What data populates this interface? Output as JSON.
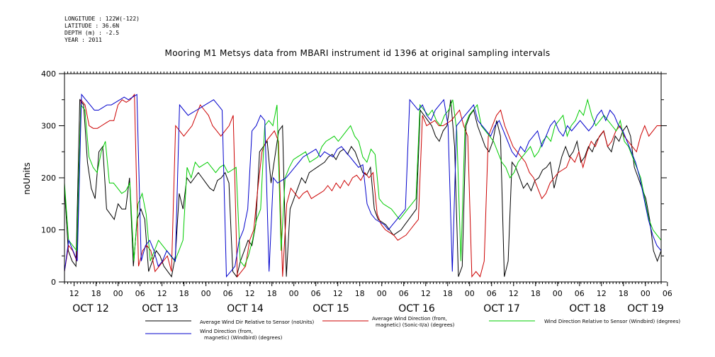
{
  "header": {
    "longitude": "LONGITUDE : 122W(-122)",
    "latitude": "LATITUDE : 36.6N",
    "depth": "DEPTH (m) : -2.5",
    "year": "YEAR : 2011"
  },
  "chart_data": {
    "type": "line",
    "title": "Mooring M1 Metsys data from MBARI instrument id 1396 at original sampling intervals",
    "ylabel": "noUnits",
    "xlabel": "",
    "ylim": [
      0,
      400
    ],
    "yticks": [
      0,
      100,
      200,
      300,
      400
    ],
    "xlim": [
      0,
      186
    ],
    "hour_ticks": [
      "12",
      "18",
      "00",
      "06",
      "12",
      "18",
      "00",
      "06",
      "12",
      "18",
      "00",
      "06",
      "12",
      "18",
      "00",
      "06",
      "12",
      "18",
      "00",
      "06",
      "12",
      "18",
      "00",
      "06",
      "12",
      "18",
      "00",
      "06"
    ],
    "day_labels": [
      "OCT 12",
      "OCT 13",
      "OCT 14",
      "OCT 15",
      "OCT 16",
      "OCT 17",
      "OCT 18",
      "OCT 19"
    ],
    "series": [
      {
        "name": "Average Wind Dir Relative to Sensor (noUnits)",
        "color": "#000000",
        "values": [
          180,
          60,
          40,
          30,
          350,
          340,
          230,
          180,
          160,
          250,
          260,
          140,
          130,
          120,
          150,
          140,
          140,
          200,
          30,
          120,
          140,
          120,
          20,
          40,
          60,
          50,
          30,
          20,
          10,
          50,
          170,
          140,
          200,
          190,
          200,
          210,
          200,
          190,
          180,
          175,
          195,
          200,
          210,
          190,
          20,
          10,
          40,
          60,
          80,
          70,
          110,
          250,
          260,
          270,
          190,
          240,
          290,
          300,
          10,
          140,
          160,
          180,
          200,
          190,
          210,
          215,
          220,
          225,
          230,
          240,
          245,
          235,
          250,
          255,
          245,
          260,
          250,
          230,
          210,
          205,
          220,
          140,
          120,
          115,
          110,
          100,
          90,
          95,
          100,
          110,
          120,
          130,
          140,
          330,
          320,
          310,
          300,
          280,
          270,
          290,
          300,
          350,
          260,
          10,
          30,
          300,
          320,
          330,
          300,
          280,
          260,
          250,
          270,
          310,
          280,
          10,
          40,
          230,
          220,
          200,
          180,
          190,
          175,
          195,
          200,
          215,
          220,
          230,
          180,
          210,
          240,
          260,
          240,
          250,
          270,
          230,
          240,
          260,
          250,
          270,
          280,
          290,
          260,
          250,
          280,
          270,
          290,
          300,
          280,
          220,
          200,
          180,
          160,
          120,
          60,
          40,
          60
        ]
      },
      {
        "name": "Average Wind Direction (from, magnetic) (Sonic-II/a) (degrees)",
        "color": "#cc0000",
        "values": [
          20,
          70,
          60,
          40,
          350,
          340,
          300,
          295,
          295,
          300,
          305,
          310,
          310,
          340,
          350,
          345,
          350,
          360,
          30,
          60,
          70,
          60,
          20,
          30,
          40,
          50,
          20,
          300,
          290,
          280,
          290,
          300,
          320,
          340,
          330,
          320,
          300,
          290,
          280,
          290,
          300,
          320,
          10,
          20,
          30,
          80,
          100,
          180,
          250,
          270,
          280,
          290,
          270,
          10,
          150,
          180,
          170,
          160,
          170,
          175,
          160,
          165,
          170,
          175,
          185,
          175,
          190,
          180,
          195,
          185,
          200,
          205,
          195,
          210,
          200,
          210,
          130,
          110,
          100,
          95,
          90,
          80,
          85,
          90,
          100,
          110,
          120,
          320,
          300,
          305,
          310,
          300,
          300,
          305,
          310,
          320,
          330,
          300,
          280,
          10,
          20,
          10,
          40,
          280,
          300,
          320,
          330,
          300,
          280,
          260,
          250,
          240,
          230,
          210,
          200,
          180,
          160,
          170,
          190,
          200,
          210,
          215,
          220,
          240,
          230,
          250,
          220,
          250,
          270,
          260,
          280,
          290,
          260,
          270,
          290,
          300,
          280,
          270,
          260,
          250,
          280,
          300,
          280,
          290,
          300,
          300
        ]
      },
      {
        "name": "Wind Direction Relative to Sensor (Windbird) (degrees)",
        "color": "#00cc00",
        "values": [
          190,
          80,
          70,
          60,
          340,
          330,
          240,
          220,
          210,
          250,
          270,
          190,
          190,
          180,
          170,
          175,
          190,
          40,
          150,
          170,
          130,
          40,
          60,
          80,
          70,
          60,
          50,
          40,
          60,
          80,
          220,
          200,
          230,
          220,
          225,
          230,
          220,
          210,
          220,
          225,
          210,
          215,
          220,
          40,
          30,
          50,
          80,
          120,
          140,
          300,
          310,
          300,
          340,
          60,
          200,
          220,
          235,
          240,
          245,
          250,
          230,
          235,
          240,
          260,
          270,
          275,
          280,
          270,
          280,
          290,
          300,
          280,
          270,
          240,
          230,
          255,
          245,
          160,
          150,
          145,
          140,
          130,
          120,
          130,
          140,
          150,
          160,
          340,
          330,
          320,
          330,
          310,
          300,
          320,
          330,
          350,
          290,
          40,
          300,
          320,
          330,
          340,
          300,
          290,
          280,
          270,
          250,
          230,
          220,
          200,
          210,
          230,
          240,
          250,
          260,
          240,
          250,
          270,
          280,
          270,
          300,
          310,
          320,
          280,
          300,
          310,
          330,
          320,
          350,
          320,
          300,
          310,
          320,
          310,
          300,
          290,
          310,
          270,
          260,
          240,
          220,
          200,
          160,
          120,
          100,
          90,
          80
        ]
      },
      {
        "name": "Wind Direction (from, magnetic) (Windbird) (degrees)",
        "color": "#0000cc",
        "values": [
          20,
          80,
          60,
          40,
          360,
          350,
          340,
          330,
          330,
          335,
          340,
          340,
          345,
          350,
          355,
          350,
          355,
          360,
          40,
          70,
          80,
          60,
          30,
          40,
          60,
          50,
          40,
          340,
          330,
          320,
          325,
          330,
          335,
          340,
          345,
          350,
          340,
          330,
          10,
          20,
          30,
          80,
          100,
          140,
          290,
          300,
          320,
          310,
          20,
          200,
          190,
          195,
          200,
          210,
          220,
          230,
          240,
          245,
          250,
          255,
          240,
          250,
          245,
          240,
          255,
          260,
          250,
          240,
          230,
          220,
          225,
          150,
          130,
          120,
          115,
          110,
          100,
          110,
          120,
          130,
          140,
          350,
          340,
          330,
          340,
          320,
          310,
          330,
          340,
          350,
          300,
          20,
          300,
          310,
          320,
          330,
          340,
          310,
          300,
          290,
          280,
          300,
          310,
          290,
          270,
          250,
          240,
          260,
          250,
          270,
          280,
          290,
          260,
          280,
          300,
          310,
          290,
          280,
          300,
          290,
          300,
          310,
          300,
          290,
          300,
          320,
          330,
          310,
          330,
          320,
          300,
          290,
          270,
          250,
          230,
          200,
          160,
          120,
          90,
          70,
          60
        ]
      }
    ]
  }
}
